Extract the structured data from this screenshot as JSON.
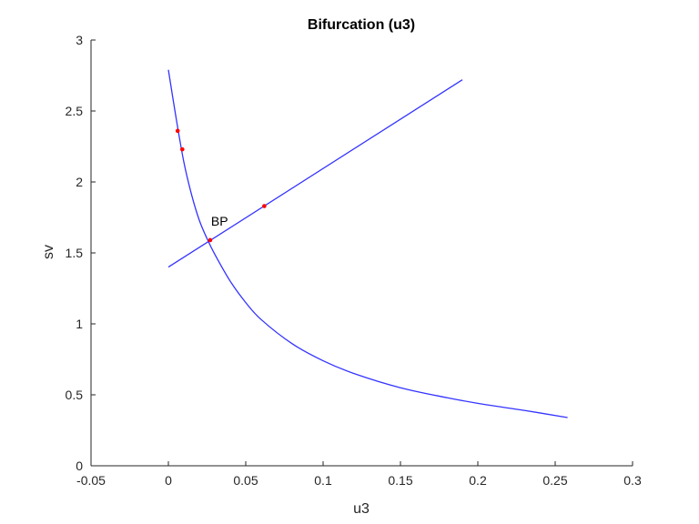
{
  "chart_data": {
    "type": "line",
    "title": "Bifurcation (u3)",
    "xlabel": "u3",
    "ylabel": "sv",
    "xlim": [
      -0.05,
      0.3
    ],
    "ylim": [
      0,
      3
    ],
    "xticks": [
      -0.05,
      0,
      0.05,
      0.1,
      0.15,
      0.2,
      0.25,
      0.3
    ],
    "xtick_labels": [
      "-0.05",
      "0",
      "0.05",
      "0.1",
      "0.15",
      "0.2",
      "0.25",
      "0.3"
    ],
    "yticks": [
      0,
      0.5,
      1,
      1.5,
      2,
      2.5,
      3
    ],
    "ytick_labels": [
      "0",
      "0.5",
      "1",
      "1.5",
      "2",
      "2.5",
      "3"
    ],
    "grid": false,
    "series": [
      {
        "color": "#3333ff",
        "x": [
          0,
          0.005,
          0.01,
          0.015,
          0.02,
          0.025,
          0.03,
          0.04,
          0.05,
          0.06,
          0.08,
          0.1,
          0.12,
          0.15,
          0.18,
          0.2,
          0.23,
          0.258
        ],
        "y": [
          2.79,
          2.45,
          2.14,
          1.91,
          1.73,
          1.6,
          1.49,
          1.3,
          1.15,
          1.03,
          0.86,
          0.74,
          0.65,
          0.55,
          0.48,
          0.44,
          0.39,
          0.34
        ]
      },
      {
        "color": "#3333ff",
        "x": [
          0,
          0.19
        ],
        "y": [
          1.4,
          2.72
        ]
      }
    ],
    "markers": {
      "color": "#ff0000",
      "x": [
        0.006,
        0.009,
        0.027,
        0.062
      ],
      "y": [
        2.36,
        2.23,
        1.59,
        1.83
      ]
    },
    "annotations": [
      {
        "text": "BP",
        "x": 0.027,
        "y": 1.59
      }
    ]
  }
}
